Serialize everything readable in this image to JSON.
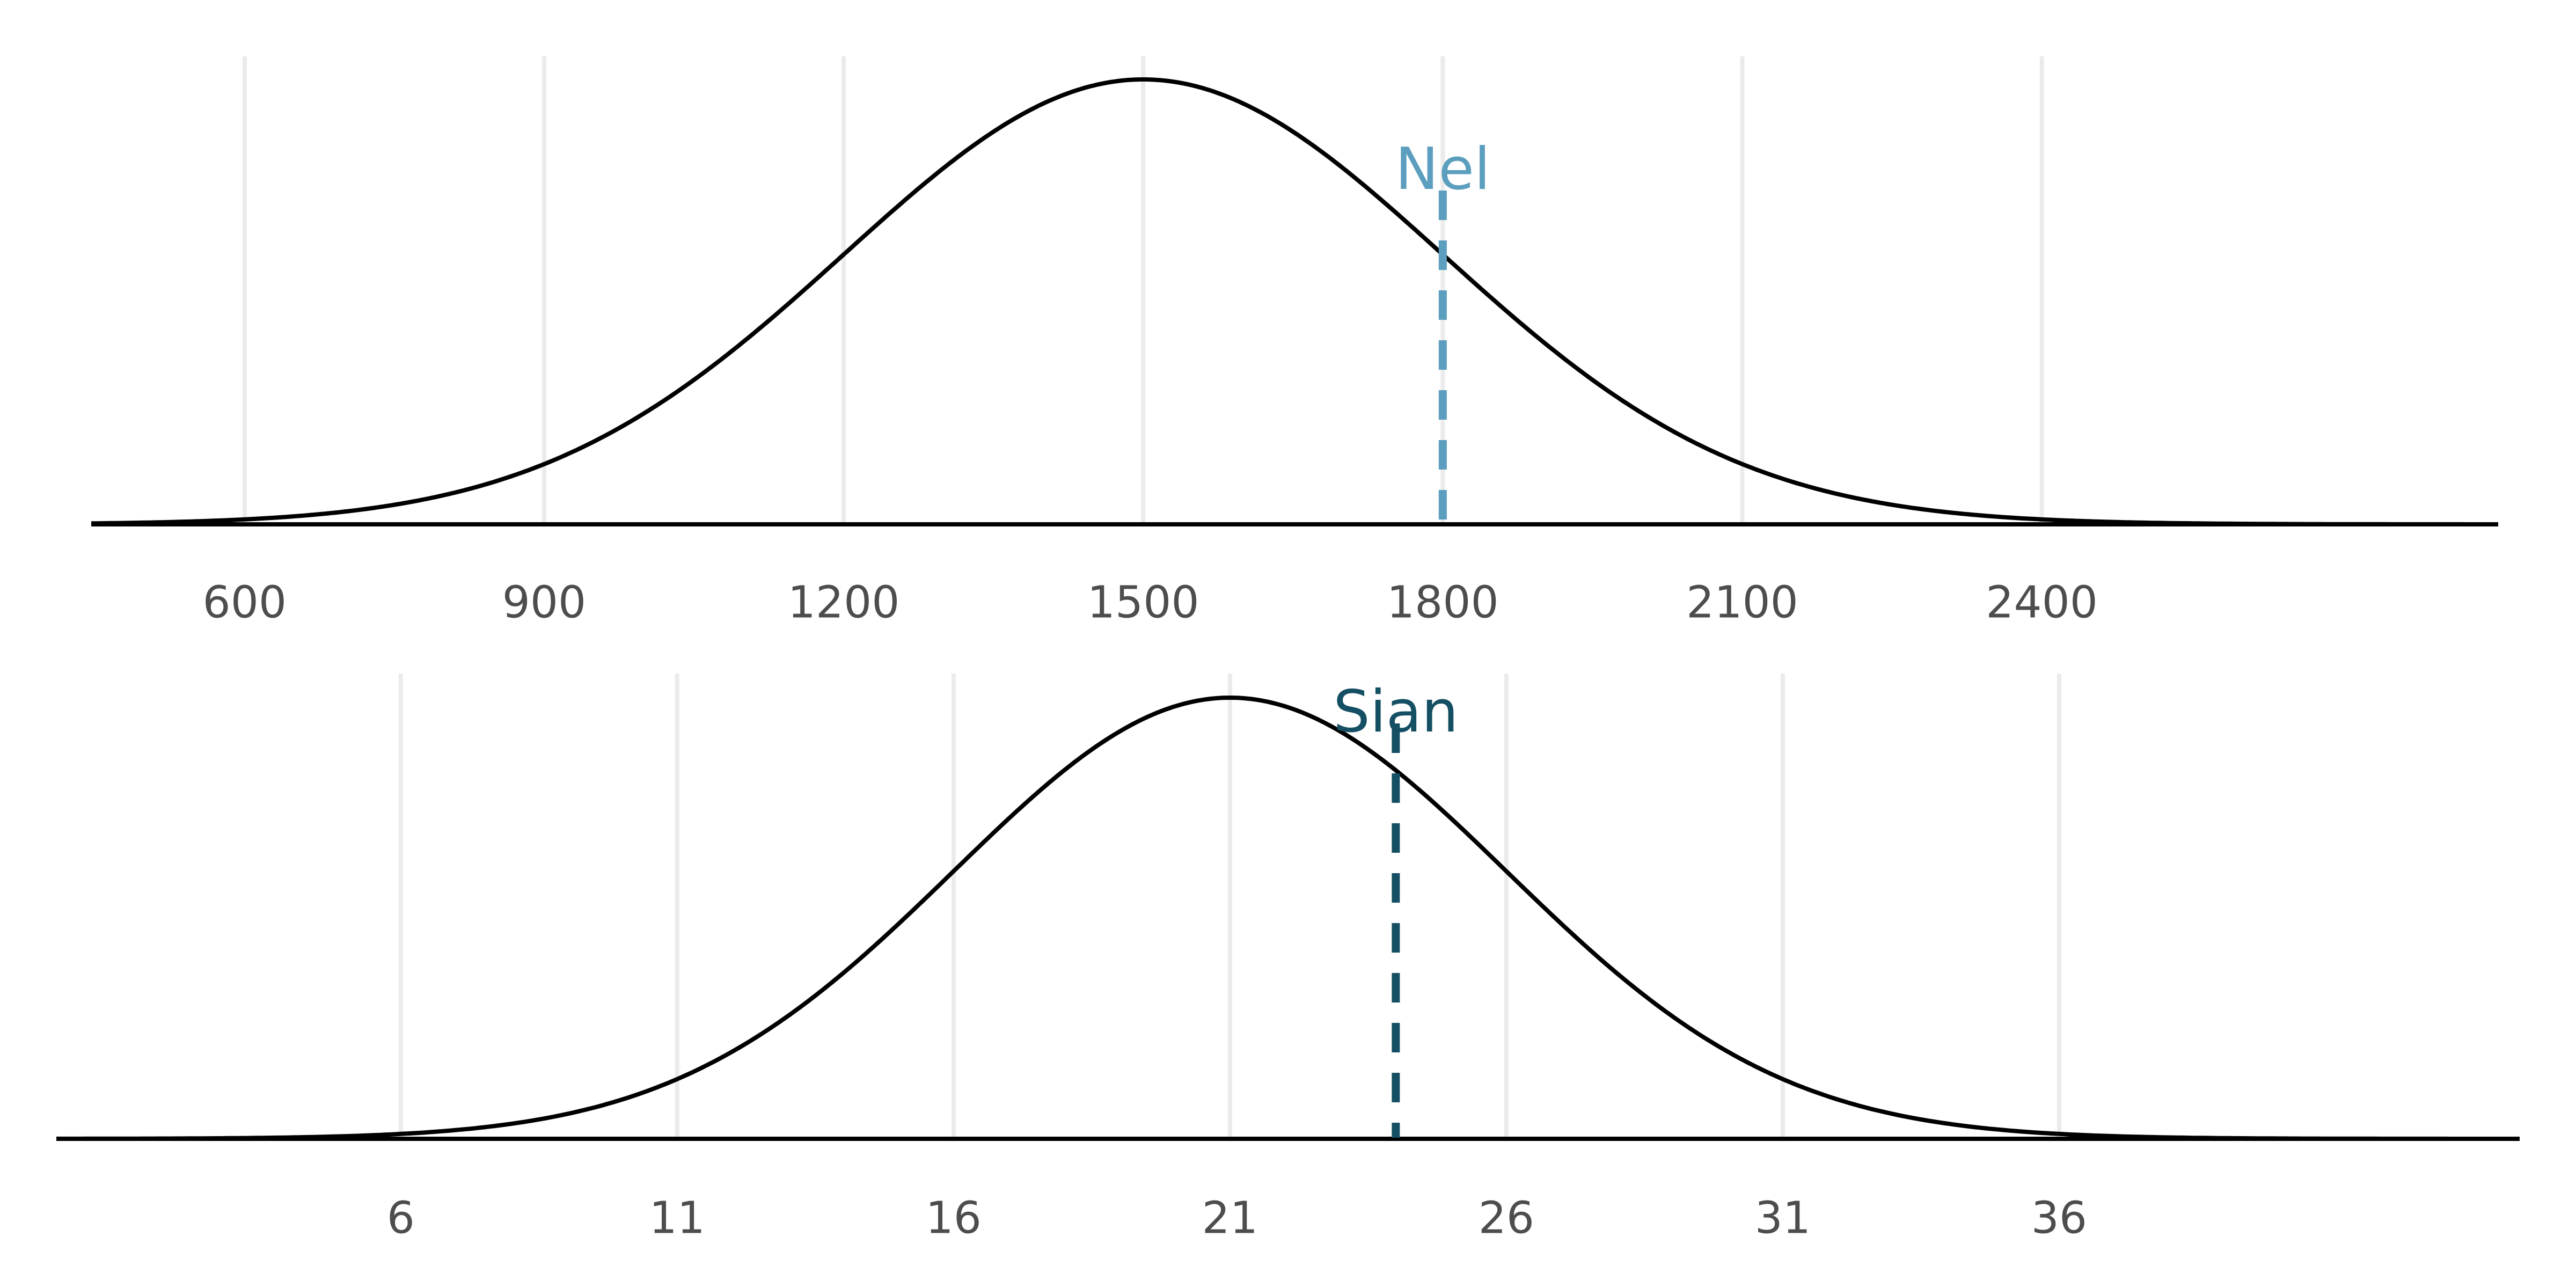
{
  "chart_data": [
    {
      "type": "line",
      "subtype": "normal-density",
      "mean": 1500,
      "sd": 300,
      "xlim": [
        355,
        2935
      ],
      "ticks": [
        600,
        900,
        1200,
        1500,
        1800,
        2100,
        2400
      ],
      "tick_labels": [
        "600",
        "900",
        "1200",
        "1500",
        "1800",
        "2100",
        "2400"
      ],
      "grid": "vertical",
      "y_axis": "hidden",
      "marker": {
        "label": "Nel",
        "x": 1800,
        "color": "#5b9ebd",
        "style": "dashed"
      }
    },
    {
      "type": "line",
      "subtype": "normal-density",
      "mean": 21,
      "sd": 5,
      "xlim": [
        -1.25,
        45.35
      ],
      "ticks": [
        6,
        11,
        16,
        21,
        26,
        31,
        36
      ],
      "tick_labels": [
        "6",
        "11",
        "16",
        "21",
        "26",
        "31",
        "36"
      ],
      "grid": "vertical",
      "y_axis": "hidden",
      "marker": {
        "label": "Sian",
        "x": 24,
        "color": "#154f63",
        "style": "dashed"
      }
    }
  ]
}
